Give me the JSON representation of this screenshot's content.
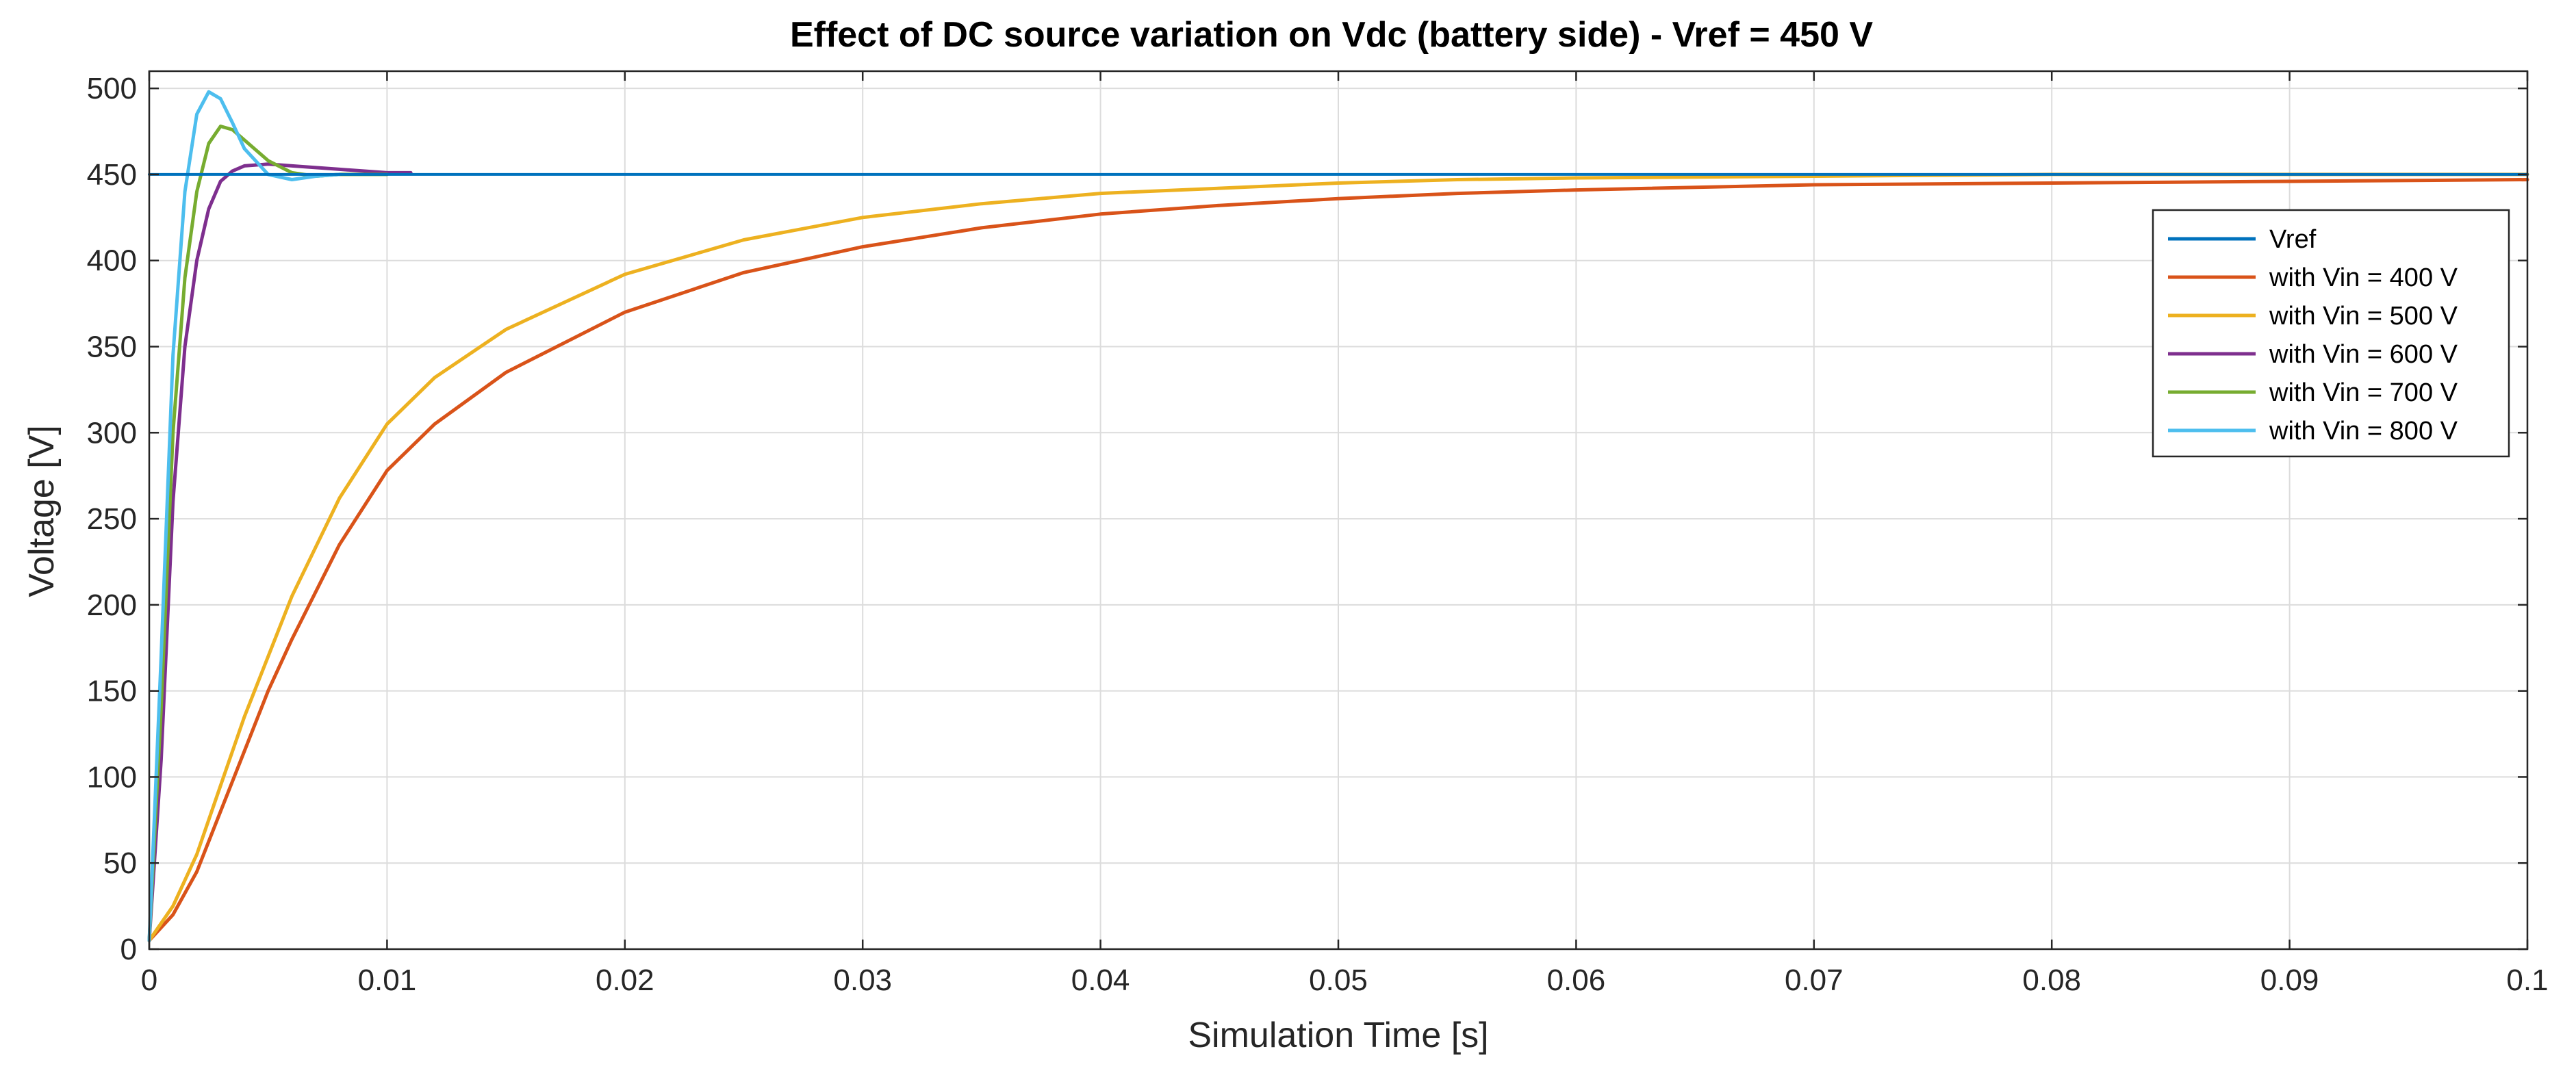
{
  "chart_data": {
    "type": "line",
    "title": "Effect of DC source variation on Vdc (battery side) - Vref = 450 V",
    "xlabel": "Simulation Time [s]",
    "ylabel": "Voltage [V]",
    "xlim": [
      0,
      0.1
    ],
    "ylim": [
      0,
      510
    ],
    "grid": true,
    "legend_position": "top-right",
    "x_ticks": [
      0,
      0.01,
      0.02,
      0.03,
      0.04,
      0.05,
      0.06,
      0.07,
      0.08,
      0.09,
      0.1
    ],
    "x_tick_labels": [
      "0",
      "0.01",
      "0.02",
      "0.03",
      "0.04",
      "0.05",
      "0.06",
      "0.07",
      "0.08",
      "0.09",
      "0.1"
    ],
    "y_ticks": [
      0,
      50,
      100,
      150,
      200,
      250,
      300,
      350,
      400,
      450,
      500
    ],
    "y_tick_labels": [
      "0",
      "50",
      "100",
      "150",
      "200",
      "250",
      "300",
      "350",
      "400",
      "450",
      "500"
    ],
    "series": [
      {
        "name": "Vref",
        "color": "#0072BD",
        "x": [
          0,
          0.1
        ],
        "y": [
          450,
          450
        ]
      },
      {
        "name": "with Vin = 400 V",
        "color": "#D95319",
        "x": [
          0,
          0.001,
          0.002,
          0.003,
          0.004,
          0.005,
          0.006,
          0.008,
          0.01,
          0.012,
          0.015,
          0.02,
          0.025,
          0.03,
          0.035,
          0.04,
          0.045,
          0.05,
          0.055,
          0.06,
          0.07,
          0.08,
          0.09,
          0.1
        ],
        "y": [
          5,
          20,
          45,
          80,
          115,
          150,
          180,
          235,
          278,
          305,
          335,
          370,
          393,
          408,
          419,
          427,
          432,
          436,
          439,
          441,
          444,
          445,
          446,
          447
        ]
      },
      {
        "name": "with Vin = 500 V",
        "color": "#EDB120",
        "x": [
          0,
          0.001,
          0.002,
          0.003,
          0.004,
          0.005,
          0.006,
          0.008,
          0.01,
          0.012,
          0.015,
          0.02,
          0.025,
          0.03,
          0.035,
          0.04,
          0.045,
          0.05,
          0.055,
          0.06,
          0.07,
          0.08,
          0.09,
          0.1
        ],
        "y": [
          5,
          25,
          55,
          95,
          135,
          170,
          205,
          262,
          305,
          332,
          360,
          392,
          412,
          425,
          433,
          439,
          442,
          445,
          447,
          448,
          449,
          450,
          450,
          450
        ]
      },
      {
        "name": "with Vin = 600 V",
        "color": "#7E2F8E",
        "x": [
          0,
          0.0005,
          0.001,
          0.0015,
          0.002,
          0.0025,
          0.003,
          0.0035,
          0.004,
          0.005,
          0.006,
          0.007,
          0.008,
          0.009,
          0.01,
          0.011
        ],
        "y": [
          5,
          110,
          260,
          350,
          400,
          430,
          446,
          452,
          455,
          456,
          455,
          454,
          453,
          452,
          451,
          451
        ]
      },
      {
        "name": "with Vin = 700 V",
        "color": "#77AC30",
        "x": [
          0,
          0.0005,
          0.001,
          0.0015,
          0.002,
          0.0025,
          0.003,
          0.0035,
          0.004,
          0.005,
          0.006,
          0.007,
          0.008,
          0.01
        ],
        "y": [
          5,
          140,
          300,
          390,
          440,
          468,
          478,
          476,
          470,
          458,
          451,
          449,
          450,
          450
        ]
      },
      {
        "name": "with Vin = 800 V",
        "color": "#4DBEEE",
        "x": [
          0,
          0.0005,
          0.001,
          0.0015,
          0.002,
          0.0025,
          0.003,
          0.0035,
          0.004,
          0.005,
          0.006,
          0.007,
          0.008
        ],
        "y": [
          5,
          170,
          345,
          440,
          485,
          498,
          494,
          480,
          465,
          450,
          447,
          449,
          450
        ]
      }
    ]
  }
}
